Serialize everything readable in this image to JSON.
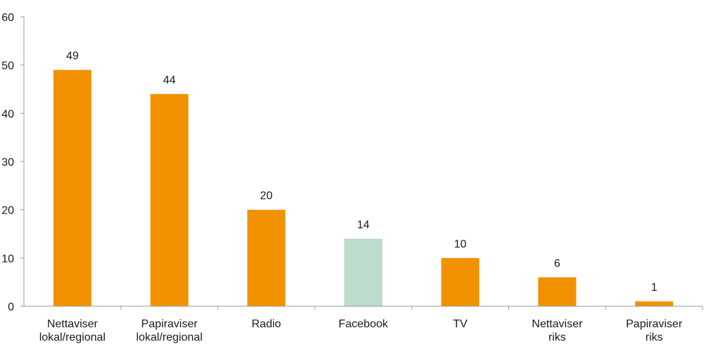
{
  "chart_data": {
    "type": "bar",
    "categories": [
      [
        "Nettaviser",
        "lokal/regional"
      ],
      [
        "Papiraviser",
        "lokal/regional"
      ],
      [
        "Radio"
      ],
      [
        "Facebook"
      ],
      [
        "TV"
      ],
      [
        "Nettaviser",
        "riks"
      ],
      [
        "Papiraviser",
        "riks"
      ]
    ],
    "values": [
      49,
      44,
      20,
      14,
      10,
      6,
      1
    ],
    "data_labels": [
      "49",
      "44",
      "20",
      "14",
      "10",
      "6",
      "1"
    ],
    "title": "",
    "xlabel": "",
    "ylabel": "",
    "ylim": [
      0,
      60
    ],
    "yticks": [
      0,
      10,
      20,
      30,
      40,
      50,
      60
    ],
    "ytick_labels": [
      "0",
      "10",
      "20",
      "30",
      "40",
      "50",
      "60"
    ],
    "grid": false,
    "legend": "none",
    "colors": {
      "default_bar": "#f29100",
      "highlight_bar": "#bcdccc",
      "axis": "#9a9a9a",
      "text": "#1a1a1a"
    },
    "highlight_index": 3
  }
}
